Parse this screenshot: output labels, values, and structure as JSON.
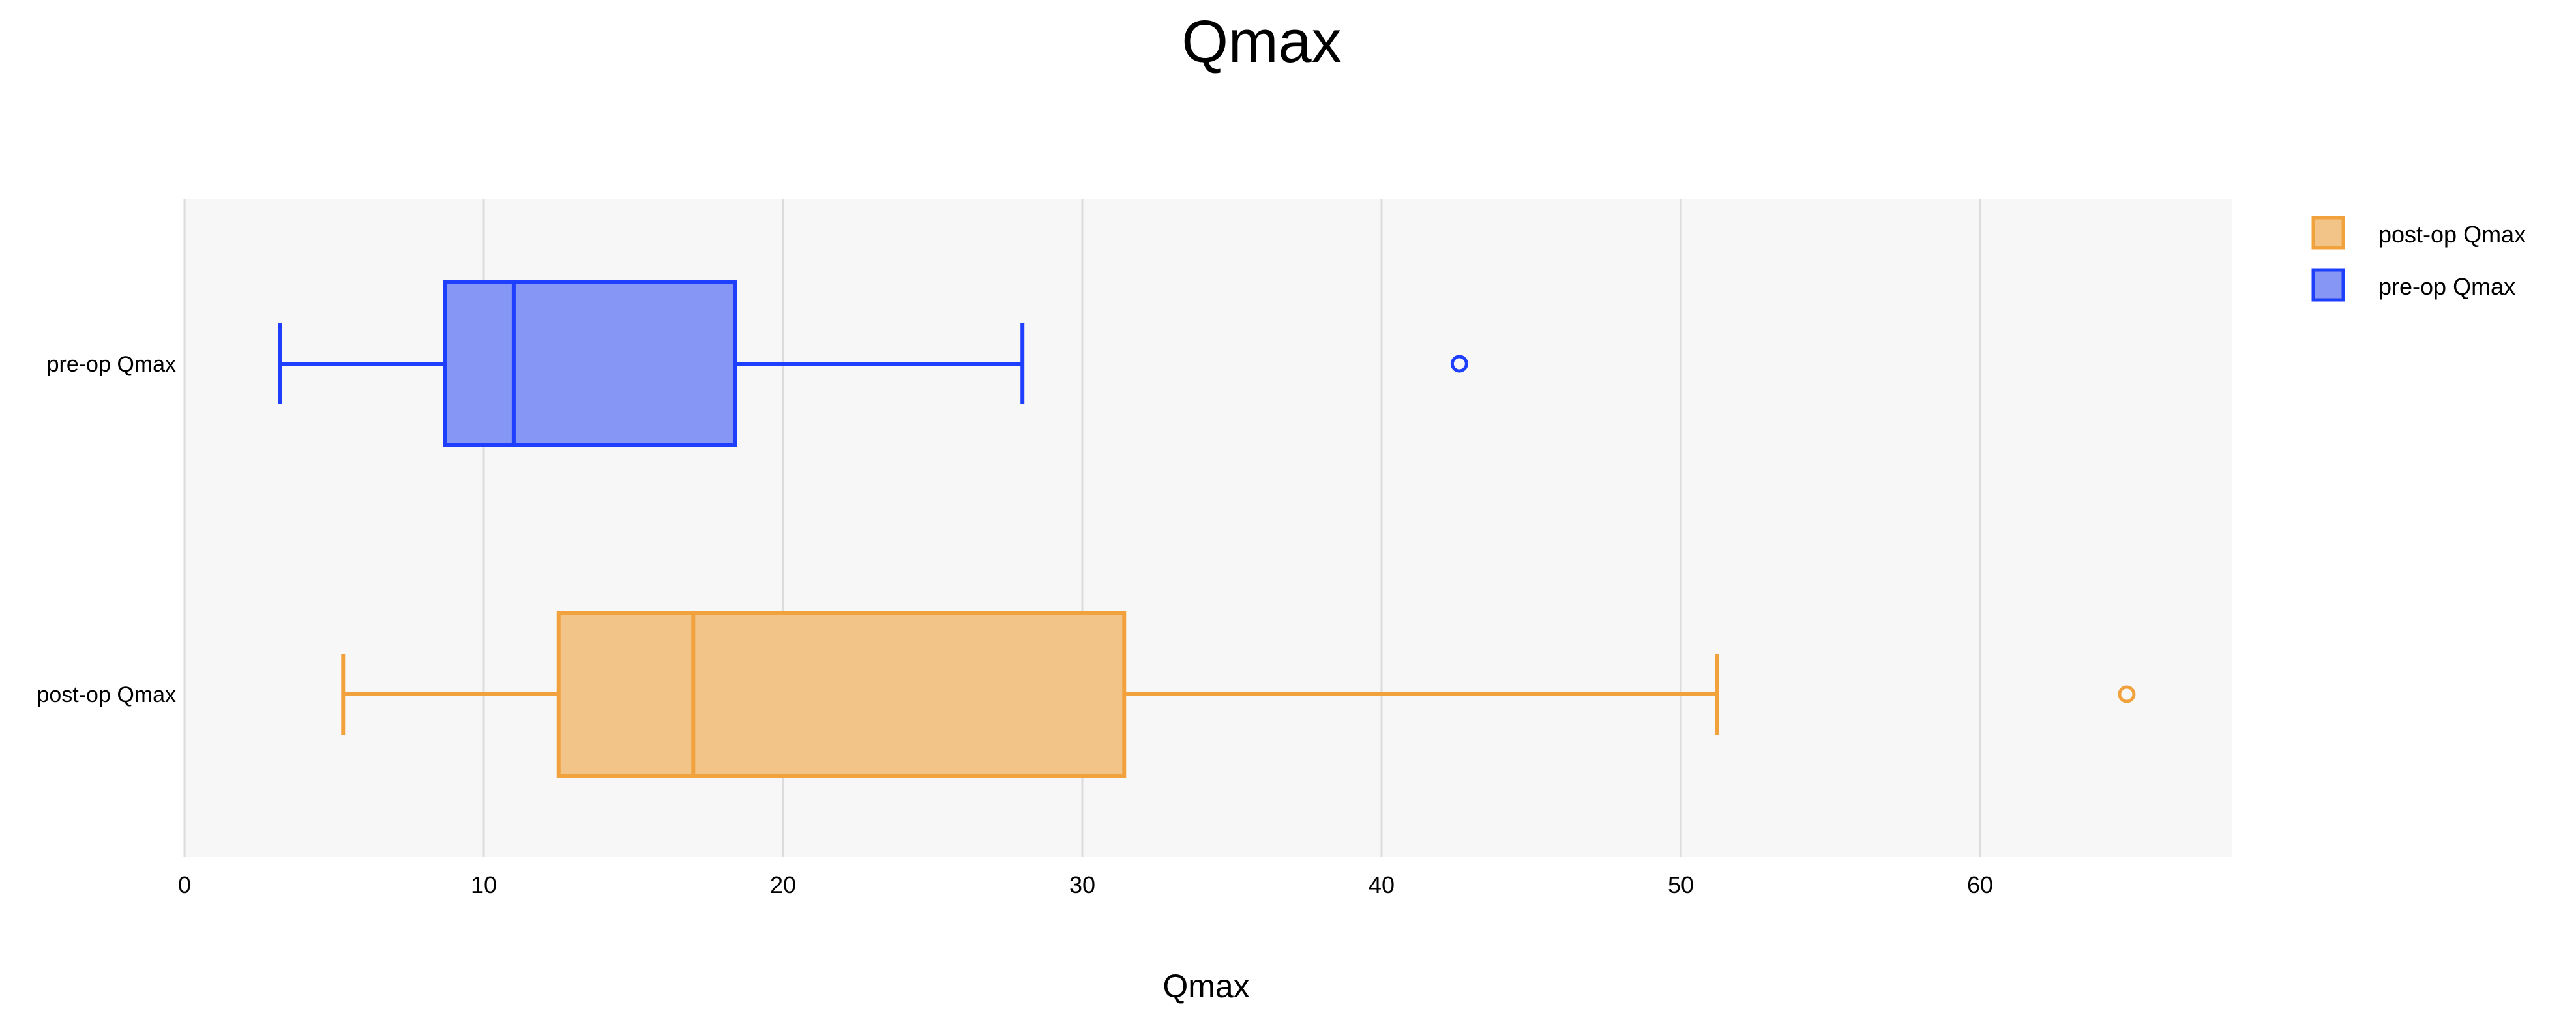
{
  "chart_data": {
    "type": "box",
    "orientation": "horizontal",
    "title": "Qmax",
    "xlabel": "Qmax",
    "ylabel": "",
    "xlim": [
      0,
      68.4
    ],
    "x_ticks": [
      0,
      10,
      20,
      30,
      40,
      50,
      60
    ],
    "grid": true,
    "legend_position": "top-right",
    "categories": [
      "pre-op Qmax",
      "post-op Qmax"
    ],
    "series": [
      {
        "name": "pre-op Qmax",
        "category": "pre-op Qmax",
        "color": "#1f3fff",
        "fill": "#8596f5",
        "whisker_low": 3.2,
        "q1": 8.7,
        "median": 11.0,
        "q3": 18.4,
        "whisker_high": 28.0,
        "outliers": [
          42.6
        ]
      },
      {
        "name": "post-op Qmax",
        "category": "post-op Qmax",
        "color": "#f2a23d",
        "fill": "#f2c487",
        "whisker_low": 5.3,
        "q1": 12.5,
        "median": 17.0,
        "q3": 31.4,
        "whisker_high": 51.2,
        "outliers": [
          64.9
        ]
      }
    ],
    "legend": [
      {
        "label": "post-op Qmax",
        "color": "#f2a23d",
        "fill": "#f2c487"
      },
      {
        "label": "pre-op Qmax",
        "color": "#1f3fff",
        "fill": "#8596f5"
      }
    ]
  }
}
